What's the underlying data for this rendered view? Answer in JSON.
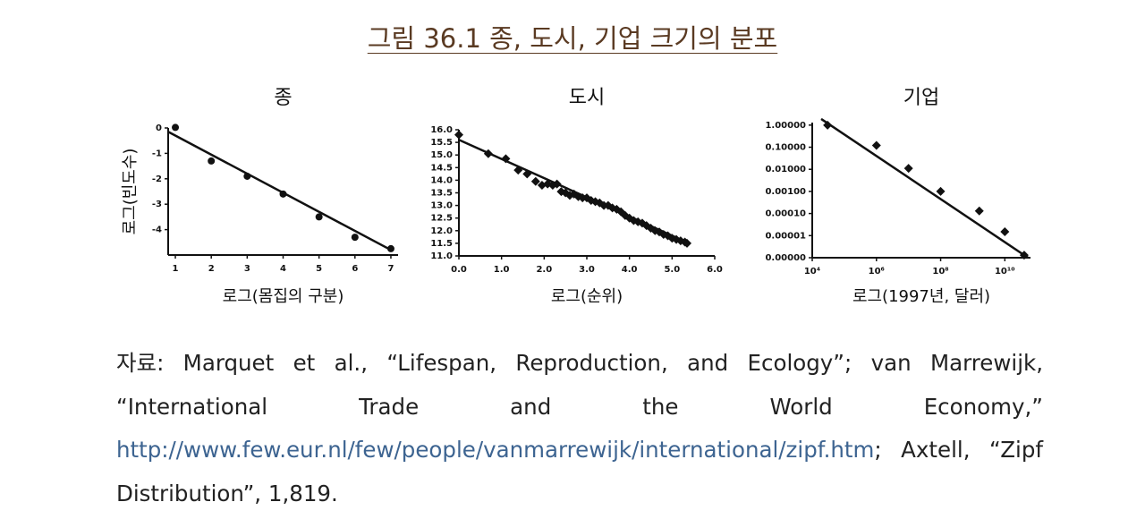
{
  "figure_title": "그림 36.1 종, 도시, 기업 크기의 분포",
  "chart_data": [
    {
      "type": "scatter",
      "title": "종",
      "xlabel": "로그(몸집의 구분)",
      "ylabel": "로그(빈도수)",
      "xlim": [
        0.8,
        7.2
      ],
      "ylim": [
        -5,
        0
      ],
      "xticks": [
        1,
        2,
        3,
        4,
        5,
        6,
        7
      ],
      "yticks": [
        0,
        -1,
        -2,
        -3,
        -4
      ],
      "series": [
        {
          "marker": "circle",
          "color": "#111111",
          "x": [
            1,
            2,
            3,
            4,
            5,
            6,
            7
          ],
          "values": [
            0.02,
            -1.3,
            -1.9,
            -2.6,
            -3.5,
            -4.3,
            -4.75
          ]
        },
        {
          "marker": "none",
          "color": "#111111",
          "x": [
            0.8,
            7
          ],
          "values": [
            -0.15,
            -4.8
          ]
        }
      ]
    },
    {
      "type": "scatter",
      "title": "도시",
      "xlabel": "로그(순위)",
      "xlim": [
        0,
        6
      ],
      "ylim": [
        11,
        16
      ],
      "xticks": [
        {
          "value": 0,
          "label": "0.0"
        },
        {
          "value": 1,
          "label": "1.0"
        },
        {
          "value": 2,
          "label": "2.0"
        },
        {
          "value": 3,
          "label": "3.0"
        },
        {
          "value": 4,
          "label": "4.0"
        },
        {
          "value": 5,
          "label": "5.0"
        },
        {
          "value": 6,
          "label": "6.0"
        }
      ],
      "yticks": [
        {
          "value": 11,
          "label": "11.0"
        },
        11.5,
        {
          "value": 12,
          "label": "12.0"
        },
        12.5,
        {
          "value": 13,
          "label": "13.0"
        },
        13.5,
        {
          "value": 14,
          "label": "14.0"
        },
        14.5,
        {
          "value": 15,
          "label": "15.0"
        },
        15.5,
        {
          "value": 16,
          "label": "16.0"
        }
      ],
      "series": [
        {
          "marker": "diamond",
          "color": "#111111",
          "x": [
            0,
            0.69,
            1.1,
            1.39,
            1.6,
            1.8,
            1.95,
            2.08,
            2.2,
            2.3,
            2.4,
            2.5,
            2.6,
            2.7,
            2.8,
            2.9,
            3.0,
            3.1,
            3.2,
            3.3,
            3.4,
            3.5,
            3.6,
            3.7,
            3.8,
            3.9,
            4.0,
            4.1,
            4.2,
            4.3,
            4.4,
            4.5,
            4.6,
            4.7,
            4.8,
            4.9,
            5.0,
            5.1,
            5.2,
            5.3,
            5.35
          ],
          "values": [
            15.8,
            15.05,
            14.85,
            14.4,
            14.25,
            13.95,
            13.8,
            13.85,
            13.8,
            13.85,
            13.55,
            13.5,
            13.4,
            13.45,
            13.35,
            13.3,
            13.3,
            13.2,
            13.15,
            13.1,
            13.0,
            13.0,
            12.9,
            12.85,
            12.75,
            12.6,
            12.5,
            12.4,
            12.35,
            12.3,
            12.2,
            12.1,
            12.0,
            11.95,
            11.85,
            11.8,
            11.7,
            11.65,
            11.6,
            11.55,
            11.5
          ]
        },
        {
          "marker": "none",
          "color": "#111111",
          "x": [
            0,
            5.4
          ],
          "values": [
            15.6,
            11.5
          ]
        }
      ]
    },
    {
      "type": "scatter",
      "title": "기업",
      "xlabel": "로그(1997년, 달러)",
      "xscale": "log",
      "yscale": "log",
      "xlim": [
        10000,
        63000000000
      ],
      "ylim": [
        1e-06,
        1.3
      ],
      "xticks": [
        {
          "value": 10000,
          "label": "10⁴"
        },
        {
          "value": 1000000,
          "label": "10⁶"
        },
        {
          "value": 100000000,
          "label": "10⁸"
        },
        {
          "value": 10000000000,
          "label": "10¹⁰"
        }
      ],
      "yticks": [
        {
          "value": 1,
          "label": "1.00000"
        },
        {
          "value": 0.1,
          "label": "0.10000"
        },
        {
          "value": 0.01,
          "label": "0.01000"
        },
        {
          "value": 0.001,
          "label": "0.00100"
        },
        {
          "value": 0.0001,
          "label": "0.00010"
        },
        {
          "value": 1e-05,
          "label": "0.00001"
        },
        {
          "value": 1e-06,
          "label": "0.00000"
        }
      ],
      "series": [
        {
          "marker": "diamond",
          "color": "#111111",
          "x": [
            30000,
            1000000,
            10000000,
            100000000,
            1600000000,
            10000000000,
            40000000000
          ],
          "values": [
            1,
            0.12,
            0.011,
            0.001,
            0.00013,
            1.5e-05,
            1.3e-06
          ]
        },
        {
          "marker": "none",
          "color": "#111111",
          "x": [
            19000,
            53000000000
          ],
          "values": [
            1.9,
            1e-06
          ]
        }
      ]
    }
  ],
  "source": {
    "text": "자료: Marquet et al., “Lifespan, Reproduction, and Ecology”; van Marrewijk, “International Trade and the World Economy,”",
    "url": "http://www.few.eur.nl/few/people/vanmarrewijk/international/zipf.htm",
    "rest": "; Axtell, “Zipf Distribution”, 1,819."
  }
}
